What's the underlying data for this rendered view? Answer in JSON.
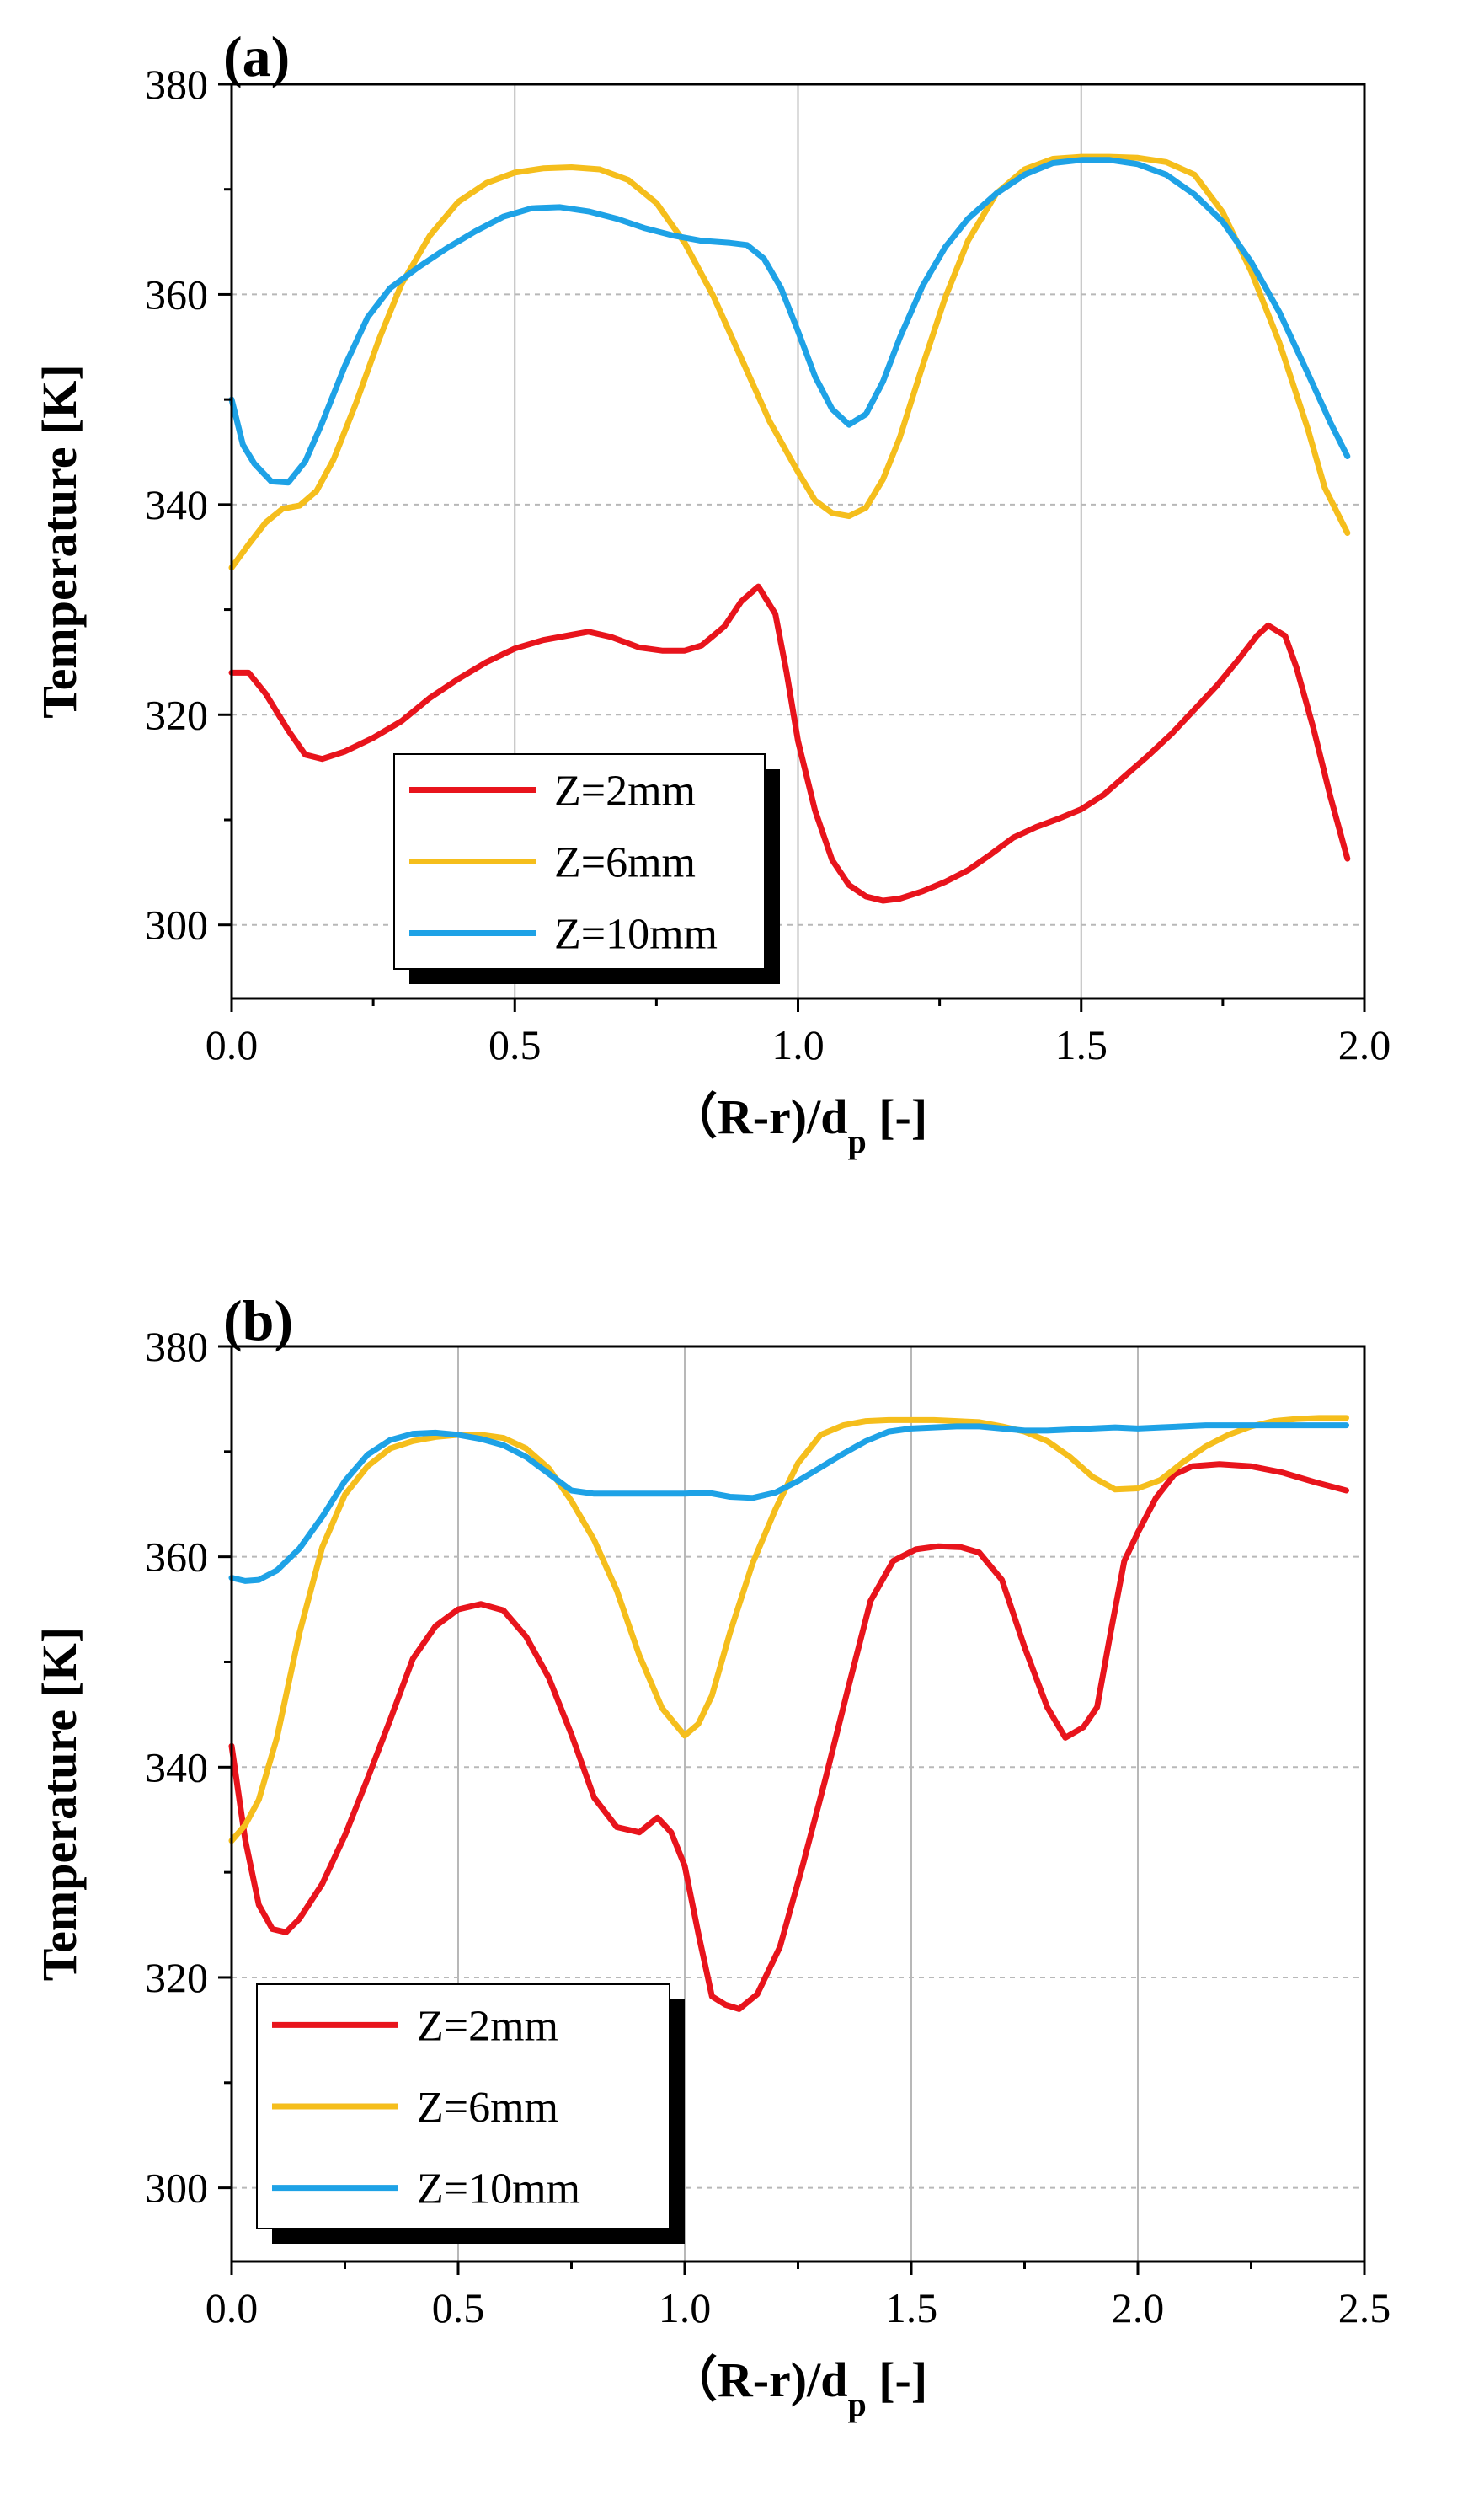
{
  "chart_data": [
    {
      "panel_label": "(a)",
      "type": "line",
      "xlabel_main": "（R-r)/d",
      "xlabel_sub": "p",
      "xlabel_tail": " [-]",
      "ylabel": "Temperature [K]",
      "xlim": [
        0.0,
        2.0
      ],
      "ylim": [
        293,
        380
      ],
      "xticks": [
        0.0,
        0.5,
        1.0,
        1.5,
        2.0
      ],
      "xtick_labels": [
        "0.0",
        "0.5",
        "1.0",
        "1.5",
        "2.0"
      ],
      "yticks": [
        300,
        320,
        340,
        360,
        380
      ],
      "ytick_labels": [
        "300",
        "320",
        "340",
        "360",
        "380"
      ],
      "grid": true,
      "legend_position": "lower-left",
      "series": [
        {
          "name": "Z=2mm",
          "color": "#e8141c",
          "x": [
            0,
            0.03,
            0.06,
            0.1,
            0.13,
            0.16,
            0.2,
            0.25,
            0.3,
            0.35,
            0.4,
            0.45,
            0.5,
            0.55,
            0.6,
            0.63,
            0.67,
            0.72,
            0.76,
            0.8,
            0.83,
            0.87,
            0.9,
            0.93,
            0.96,
            0.98,
            1.0,
            1.03,
            1.06,
            1.09,
            1.12,
            1.15,
            1.18,
            1.22,
            1.26,
            1.3,
            1.34,
            1.38,
            1.42,
            1.46,
            1.5,
            1.54,
            1.58,
            1.62,
            1.66,
            1.7,
            1.74,
            1.78,
            1.81,
            1.83,
            1.86,
            1.88,
            1.91,
            1.94,
            1.97
          ],
          "y": [
            324,
            324,
            322,
            318.5,
            316.2,
            315.8,
            316.5,
            317.8,
            319.4,
            321.6,
            323.4,
            325,
            326.3,
            327.1,
            327.6,
            327.9,
            327.4,
            326.4,
            326.1,
            326.1,
            326.6,
            328.4,
            330.8,
            332.2,
            329.6,
            324,
            317.5,
            310.9,
            306.2,
            303.8,
            302.7,
            302.3,
            302.5,
            303.2,
            304.1,
            305.2,
            306.7,
            308.3,
            309.3,
            310.1,
            311,
            312.4,
            314.3,
            316.2,
            318.2,
            320.5,
            322.8,
            325.4,
            327.5,
            328.5,
            327.5,
            324.5,
            318.7,
            312.2,
            306.3
          ]
        },
        {
          "name": "Z=6mm",
          "color": "#f5be1c",
          "x": [
            0,
            0.03,
            0.06,
            0.09,
            0.12,
            0.15,
            0.18,
            0.22,
            0.26,
            0.3,
            0.35,
            0.4,
            0.45,
            0.5,
            0.55,
            0.6,
            0.65,
            0.7,
            0.75,
            0.8,
            0.85,
            0.9,
            0.95,
            1.0,
            1.03,
            1.06,
            1.09,
            1.12,
            1.15,
            1.18,
            1.22,
            1.26,
            1.3,
            1.35,
            1.4,
            1.45,
            1.5,
            1.55,
            1.6,
            1.65,
            1.7,
            1.75,
            1.8,
            1.85,
            1.9,
            1.93,
            1.97
          ],
          "y": [
            334,
            336.2,
            338.3,
            339.6,
            339.9,
            341.3,
            344.3,
            349.7,
            355.7,
            361,
            365.6,
            368.8,
            370.6,
            371.6,
            372,
            372.1,
            371.9,
            370.9,
            368.7,
            364.9,
            359.9,
            353.9,
            347.9,
            343.1,
            340.4,
            339.2,
            338.9,
            339.7,
            342.4,
            346.4,
            353.2,
            359.7,
            365.1,
            369.6,
            371.9,
            372.9,
            373.1,
            373.1,
            373,
            372.6,
            371.4,
            367.8,
            362.2,
            355.4,
            347.2,
            341.6,
            337.3
          ]
        },
        {
          "name": "Z=10mm",
          "color": "#1ea2e6",
          "x": [
            0,
            0.02,
            0.04,
            0.07,
            0.1,
            0.13,
            0.16,
            0.2,
            0.24,
            0.28,
            0.33,
            0.38,
            0.43,
            0.48,
            0.53,
            0.58,
            0.63,
            0.68,
            0.73,
            0.78,
            0.83,
            0.88,
            0.91,
            0.94,
            0.97,
            1.0,
            1.03,
            1.06,
            1.09,
            1.12,
            1.15,
            1.18,
            1.22,
            1.26,
            1.3,
            1.35,
            1.4,
            1.45,
            1.5,
            1.55,
            1.6,
            1.65,
            1.7,
            1.75,
            1.8,
            1.85,
            1.9,
            1.94,
            1.97
          ],
          "y": [
            350,
            345.7,
            343.9,
            342.2,
            342.1,
            344.1,
            347.8,
            353.2,
            357.8,
            360.6,
            362.6,
            364.4,
            366,
            367.4,
            368.2,
            368.3,
            367.9,
            367.2,
            366.3,
            365.6,
            365.1,
            364.9,
            364.7,
            363.4,
            360.6,
            356.5,
            352.2,
            349.1,
            347.6,
            348.6,
            351.7,
            355.9,
            360.8,
            364.5,
            367.2,
            369.6,
            371.4,
            372.5,
            372.8,
            372.8,
            372.4,
            371.4,
            369.5,
            366.9,
            363.1,
            358.3,
            352.5,
            347.8,
            344.6
          ]
        }
      ]
    },
    {
      "panel_label": "(b)",
      "type": "line",
      "xlabel_main": "（R-r)/d",
      "xlabel_sub": "p",
      "xlabel_tail": " [-]",
      "ylabel": "Temperature [K]",
      "xlim": [
        0.0,
        2.5
      ],
      "ylim": [
        293,
        380
      ],
      "xticks": [
        0.0,
        0.5,
        1.0,
        1.5,
        2.0,
        2.5
      ],
      "xtick_labels": [
        "0.0",
        "0.5",
        "1.0",
        "1.5",
        "2.0",
        "2.5"
      ],
      "yticks": [
        300,
        320,
        340,
        360,
        380
      ],
      "ytick_labels": [
        "300",
        "320",
        "340",
        "360",
        "380"
      ],
      "grid": true,
      "legend_position": "lower-left",
      "series": [
        {
          "name": "Z=2mm",
          "color": "#e8141c",
          "x": [
            0,
            0.03,
            0.06,
            0.09,
            0.12,
            0.15,
            0.2,
            0.25,
            0.3,
            0.35,
            0.4,
            0.45,
            0.5,
            0.55,
            0.6,
            0.65,
            0.7,
            0.75,
            0.8,
            0.85,
            0.9,
            0.94,
            0.97,
            1.0,
            1.03,
            1.06,
            1.09,
            1.12,
            1.16,
            1.21,
            1.26,
            1.31,
            1.36,
            1.41,
            1.46,
            1.51,
            1.56,
            1.61,
            1.65,
            1.7,
            1.75,
            1.8,
            1.84,
            1.88,
            1.91,
            1.94,
            1.97,
            2.0,
            2.04,
            2.08,
            2.12,
            2.18,
            2.25,
            2.32,
            2.39,
            2.46
          ],
          "y": [
            342,
            333.1,
            326.9,
            324.6,
            324.3,
            325.6,
            328.9,
            333.5,
            338.9,
            344.5,
            350.3,
            353.4,
            355,
            355.5,
            354.9,
            352.4,
            348.5,
            343.1,
            337.1,
            334.3,
            333.8,
            335.2,
            333.8,
            330.6,
            324.2,
            318.2,
            317.4,
            317,
            318.4,
            322.9,
            330.6,
            338.8,
            347.4,
            355.8,
            359.6,
            360.7,
            361,
            360.9,
            360.4,
            357.8,
            351.4,
            345.7,
            342.8,
            343.8,
            345.7,
            352.8,
            359.6,
            362.3,
            365.6,
            367.8,
            368.6,
            368.8,
            368.6,
            368,
            367.1,
            366.3
          ]
        },
        {
          "name": "Z=6mm",
          "color": "#f5be1c",
          "x": [
            0,
            0.03,
            0.06,
            0.1,
            0.15,
            0.2,
            0.25,
            0.3,
            0.35,
            0.4,
            0.45,
            0.5,
            0.55,
            0.6,
            0.65,
            0.7,
            0.75,
            0.8,
            0.85,
            0.9,
            0.95,
            1.0,
            1.03,
            1.06,
            1.1,
            1.15,
            1.2,
            1.25,
            1.3,
            1.35,
            1.4,
            1.45,
            1.5,
            1.55,
            1.6,
            1.65,
            1.7,
            1.75,
            1.8,
            1.85,
            1.9,
            1.95,
            2.0,
            2.05,
            2.1,
            2.15,
            2.2,
            2.25,
            2.3,
            2.35,
            2.4,
            2.46
          ],
          "y": [
            333,
            334.5,
            336.9,
            342.8,
            352.8,
            360.9,
            365.9,
            368.6,
            370.3,
            371,
            371.4,
            371.6,
            371.6,
            371.3,
            370.3,
            368.4,
            365.3,
            361.6,
            356.8,
            350.6,
            345.6,
            343,
            344.1,
            346.8,
            352.8,
            359.4,
            364.5,
            368.9,
            371.6,
            372.5,
            372.9,
            373,
            373,
            373,
            372.9,
            372.8,
            372.4,
            371.9,
            371,
            369.5,
            367.6,
            366.4,
            366.5,
            367.3,
            369,
            370.5,
            371.6,
            372.4,
            372.9,
            373.1,
            373.2,
            373.2
          ]
        },
        {
          "name": "Z=10mm",
          "color": "#1ea2e6",
          "x": [
            0,
            0.03,
            0.06,
            0.1,
            0.15,
            0.2,
            0.25,
            0.3,
            0.35,
            0.4,
            0.45,
            0.5,
            0.55,
            0.6,
            0.65,
            0.7,
            0.75,
            0.8,
            0.85,
            0.9,
            0.95,
            1.0,
            1.05,
            1.1,
            1.15,
            1.2,
            1.25,
            1.3,
            1.35,
            1.4,
            1.45,
            1.5,
            1.55,
            1.6,
            1.65,
            1.7,
            1.75,
            1.8,
            1.85,
            1.9,
            1.95,
            2.0,
            2.05,
            2.1,
            2.15,
            2.2,
            2.25,
            2.3,
            2.35,
            2.4,
            2.46
          ],
          "y": [
            358,
            357.7,
            357.8,
            358.7,
            360.8,
            363.8,
            367.2,
            369.7,
            371.1,
            371.7,
            371.8,
            371.6,
            371.2,
            370.6,
            369.5,
            367.9,
            366.3,
            366,
            366,
            366,
            366,
            366,
            366.1,
            365.7,
            365.6,
            366.1,
            367.2,
            368.5,
            369.8,
            371,
            371.9,
            372.2,
            372.3,
            372.4,
            372.4,
            372.2,
            372,
            372,
            372.1,
            372.2,
            372.3,
            372.2,
            372.3,
            372.4,
            372.5,
            372.5,
            372.5,
            372.5,
            372.5,
            372.5,
            372.5
          ]
        }
      ]
    }
  ]
}
